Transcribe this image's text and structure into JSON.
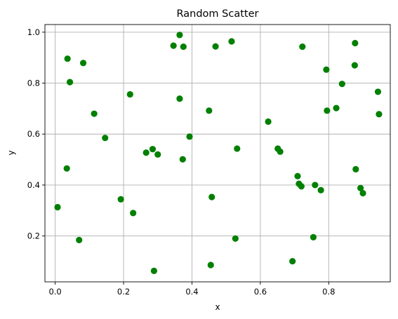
{
  "chart_data": {
    "type": "scatter",
    "title": "Random Scatter",
    "xlabel": "x",
    "ylabel": "y",
    "xlim": [
      -0.03,
      0.98
    ],
    "ylim": [
      0.02,
      1.03
    ],
    "x_ticks": [
      0.0,
      0.2,
      0.4,
      0.6,
      0.8
    ],
    "x_tick_labels": [
      "0.0",
      "0.2",
      "0.4",
      "0.6",
      "0.8"
    ],
    "y_ticks": [
      0.2,
      0.4,
      0.6,
      0.8,
      1.0
    ],
    "y_tick_labels": [
      "0.2",
      "0.4",
      "0.6",
      "0.8",
      "1.0"
    ],
    "grid": true,
    "marker_color": "#008000",
    "series": [
      {
        "x": [
          0.007,
          0.034,
          0.036,
          0.043,
          0.07,
          0.082,
          0.114,
          0.146,
          0.192,
          0.219,
          0.228,
          0.266,
          0.285,
          0.289,
          0.3,
          0.346,
          0.364,
          0.364,
          0.373,
          0.375,
          0.393,
          0.45,
          0.455,
          0.458,
          0.469,
          0.516,
          0.527,
          0.532,
          0.623,
          0.651,
          0.658,
          0.694,
          0.709,
          0.713,
          0.72,
          0.723,
          0.755,
          0.76,
          0.777,
          0.793,
          0.795,
          0.822,
          0.839,
          0.876,
          0.877,
          0.879,
          0.893,
          0.9,
          0.944,
          0.947
        ],
        "y": [
          0.313,
          0.465,
          0.896,
          0.804,
          0.184,
          0.879,
          0.68,
          0.585,
          0.344,
          0.756,
          0.29,
          0.527,
          0.541,
          0.063,
          0.52,
          0.947,
          0.989,
          0.739,
          0.501,
          0.943,
          0.59,
          0.692,
          0.086,
          0.353,
          0.944,
          0.964,
          0.19,
          0.543,
          0.649,
          0.543,
          0.531,
          0.101,
          0.435,
          0.405,
          0.395,
          0.943,
          0.195,
          0.4,
          0.38,
          0.853,
          0.692,
          0.702,
          0.797,
          0.87,
          0.957,
          0.462,
          0.388,
          0.368,
          0.766,
          0.678
        ]
      }
    ]
  }
}
